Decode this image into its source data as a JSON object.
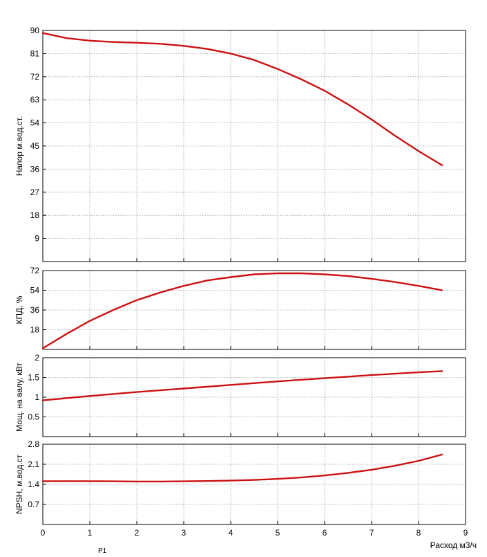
{
  "colors": {
    "curve": "#cc1111",
    "grid": "#9a9a9a",
    "frame": "#000000"
  },
  "marker_label": "P1",
  "chart_data": [
    {
      "type": "line",
      "ylabel": "Напор м.вод.ст.",
      "ylim": [
        0,
        90
      ],
      "yticks": [
        9,
        18,
        27,
        36,
        45,
        54,
        63,
        72,
        81,
        90
      ],
      "xlim": [
        0,
        9
      ],
      "grid": true,
      "series": [
        {
          "x": [
            0,
            0.5,
            1,
            1.5,
            2,
            2.5,
            3,
            3.5,
            4,
            4.5,
            5,
            5.5,
            6,
            6.5,
            7,
            7.5,
            8,
            8.5
          ],
          "y": [
            89,
            87,
            86,
            85.5,
            85.2,
            84.8,
            84,
            82.8,
            81,
            78.5,
            75,
            71,
            66.5,
            61.2,
            55.3,
            49,
            43,
            37.5
          ]
        }
      ]
    },
    {
      "type": "line",
      "ylabel": "КПД, %",
      "ylim": [
        0,
        72
      ],
      "yticks": [
        18,
        36,
        54,
        72
      ],
      "xlim": [
        0,
        9
      ],
      "grid": true,
      "series": [
        {
          "x": [
            0,
            0.5,
            1,
            1.5,
            2,
            2.5,
            3,
            3.5,
            4,
            4.5,
            5,
            5.5,
            6,
            6.5,
            7,
            7.5,
            8,
            8.5
          ],
          "y": [
            1,
            14,
            26,
            36,
            45,
            52,
            58,
            63,
            66,
            68.5,
            69.5,
            69.5,
            68.5,
            67,
            64.5,
            61.5,
            58,
            54
          ]
        }
      ]
    },
    {
      "type": "line",
      "ylabel": "Мощ. на валу, кВт",
      "ylim": [
        0,
        2
      ],
      "yticks": [
        0.5,
        1,
        1.5,
        2
      ],
      "xlim": [
        0,
        9
      ],
      "grid": true,
      "series": [
        {
          "x": [
            0,
            1,
            2,
            3,
            4,
            5,
            6,
            7,
            8,
            8.5
          ],
          "y": [
            0.92,
            1.03,
            1.13,
            1.22,
            1.31,
            1.4,
            1.48,
            1.56,
            1.63,
            1.66
          ]
        }
      ]
    },
    {
      "type": "line",
      "ylabel": "NPSH, м.вод.ст",
      "ylim": [
        0,
        2.8
      ],
      "yticks": [
        0.7,
        1.4,
        2.1,
        2.8
      ],
      "xlim": [
        0,
        9
      ],
      "xticks": [
        0,
        1,
        2,
        3,
        4,
        5,
        6,
        7,
        8,
        9
      ],
      "xlabel": "Расход м3/ч",
      "grid": true,
      "series": [
        {
          "x": [
            0,
            0.5,
            1,
            1.5,
            2,
            2.5,
            3,
            3.5,
            4,
            4.5,
            5,
            5.5,
            6,
            6.5,
            7,
            7.5,
            8,
            8.5
          ],
          "y": [
            1.51,
            1.51,
            1.51,
            1.505,
            1.5,
            1.5,
            1.505,
            1.515,
            1.53,
            1.555,
            1.59,
            1.64,
            1.71,
            1.8,
            1.91,
            2.05,
            2.22,
            2.44
          ]
        }
      ]
    }
  ]
}
